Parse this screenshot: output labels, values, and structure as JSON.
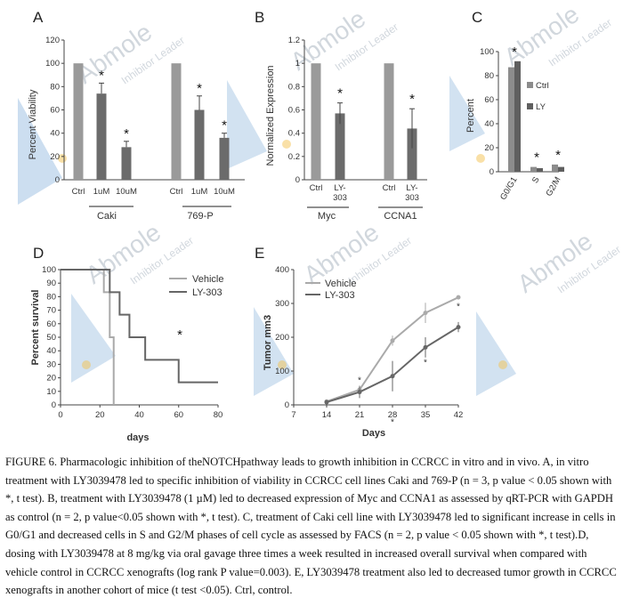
{
  "watermark": {
    "brand": "Abmole",
    "tagline": "Inhibitor Leader"
  },
  "panels": {
    "A": {
      "letter": "A",
      "ylabel": "Percent Viability",
      "yticks": [
        "0",
        "20",
        "40",
        "60",
        "80",
        "100",
        "120"
      ],
      "bar_labels": [
        "Ctrl",
        "1uM",
        "10uM",
        "Ctrl",
        "1uM",
        "10uM"
      ],
      "groups": [
        "Caki",
        "769-P"
      ],
      "star": "*"
    },
    "B": {
      "letter": "B",
      "ylabel": "Normalized Expression",
      "yticks": [
        "0",
        "0.2",
        "0.4",
        "0.6",
        "0.8",
        "1",
        "1.2"
      ],
      "bar_labels": [
        "Ctrl",
        "LY-\n303",
        "Ctrl",
        "LY-\n303"
      ],
      "groups": [
        "Myc",
        "CCNA1"
      ],
      "star": "*"
    },
    "C": {
      "letter": "C",
      "ylabel": "Percent",
      "yticks": [
        "0",
        "20",
        "40",
        "60",
        "80",
        "100"
      ],
      "categories": [
        "G0/G1",
        "S",
        "G2/M"
      ],
      "legend": [
        "Ctrl",
        "LY"
      ],
      "star": "*"
    },
    "D": {
      "letter": "D",
      "ylabel": "Percent survival",
      "xlabel": "days",
      "yticks": [
        "0",
        "10",
        "20",
        "30",
        "40",
        "50",
        "60",
        "70",
        "80",
        "90",
        "100"
      ],
      "xticks": [
        "0",
        "20",
        "40",
        "60",
        "80"
      ],
      "legend": [
        "Vehicle",
        "LY-303"
      ],
      "star": "*"
    },
    "E": {
      "letter": "E",
      "ylabel": "Tumor mm3",
      "xlabel": "Days",
      "yticks": [
        "0",
        "100",
        "200",
        "300",
        "400"
      ],
      "xticks": [
        "7",
        "14",
        "21",
        "28",
        "35",
        "42"
      ],
      "legend": [
        "Vehicle",
        "LY-303"
      ],
      "star": "*"
    }
  },
  "chart_data": [
    {
      "type": "bar",
      "panel": "A",
      "categories": [
        "Ctrl",
        "1uM",
        "10uM",
        "Ctrl",
        "1uM",
        "10uM"
      ],
      "groups": [
        "Caki",
        "Caki",
        "Caki",
        "769-P",
        "769-P",
        "769-P"
      ],
      "values": [
        100,
        74,
        28,
        100,
        60,
        36
      ],
      "errors": [
        0,
        9,
        5,
        0,
        12,
        4
      ],
      "significant": [
        false,
        true,
        true,
        false,
        true,
        true
      ],
      "ylabel": "Percent Viability",
      "ylim": [
        0,
        120
      ],
      "colors": [
        "#9a9a9a",
        "#6b6b6b",
        "#6b6b6b",
        "#9a9a9a",
        "#6b6b6b",
        "#6b6b6b"
      ]
    },
    {
      "type": "bar",
      "panel": "B",
      "categories": [
        "Ctrl",
        "LY-303",
        "Ctrl",
        "LY-303"
      ],
      "groups": [
        "Myc",
        "Myc",
        "CCNA1",
        "CCNA1"
      ],
      "values": [
        1.0,
        0.57,
        1.0,
        0.44
      ],
      "errors": [
        0,
        0.09,
        0,
        0.17
      ],
      "significant": [
        false,
        true,
        false,
        true
      ],
      "ylabel": "Normalized Expression",
      "ylim": [
        0,
        1.2
      ],
      "colors": [
        "#9a9a9a",
        "#6b6b6b",
        "#9a9a9a",
        "#6b6b6b"
      ]
    },
    {
      "type": "bar",
      "panel": "C",
      "categories": [
        "G0/G1",
        "S",
        "G2/M"
      ],
      "series": [
        {
          "name": "Ctrl",
          "values": [
            87,
            4,
            6
          ],
          "color": "#8c8c8c"
        },
        {
          "name": "LY",
          "values": [
            92,
            3,
            4
          ],
          "color": "#5f5f5f"
        }
      ],
      "significant": [
        true,
        true,
        true
      ],
      "ylabel": "Percent",
      "ylim": [
        0,
        100
      ]
    },
    {
      "type": "line",
      "panel": "D",
      "step": true,
      "series": [
        {
          "name": "Vehicle",
          "x": [
            0,
            22,
            22,
            25,
            25,
            27,
            27
          ],
          "y": [
            100,
            100,
            83.3,
            83.3,
            50,
            50,
            0
          ],
          "color": "#aaaaaa"
        },
        {
          "name": "LY-303",
          "x": [
            0,
            25,
            25,
            30,
            30,
            35,
            35,
            43,
            43,
            50,
            50,
            60,
            60,
            80
          ],
          "y": [
            100,
            100,
            83.3,
            83.3,
            66.7,
            66.7,
            50,
            50,
            33.3,
            33.3,
            33.3,
            33.3,
            16.7,
            16.7
          ],
          "color": "#666666"
        }
      ],
      "xlabel": "days",
      "ylabel": "Percent survival",
      "xlim": [
        0,
        80
      ],
      "ylim": [
        0,
        100
      ]
    },
    {
      "type": "line",
      "panel": "E",
      "series": [
        {
          "name": "Vehicle",
          "x": [
            14,
            21,
            28,
            35,
            42
          ],
          "y": [
            10,
            45,
            190,
            272,
            318
          ],
          "err": [
            3,
            12,
            15,
            30,
            4
          ],
          "color": "#aaaaaa"
        },
        {
          "name": "LY-303",
          "x": [
            14,
            21,
            28,
            35,
            42
          ],
          "y": [
            8,
            38,
            85,
            170,
            230
          ],
          "err": [
            3,
            18,
            45,
            30,
            15
          ],
          "color": "#666666"
        }
      ],
      "xlabel": "Days",
      "ylabel": "Tumor mm3",
      "xlim": [
        7,
        42
      ],
      "ylim": [
        0,
        400
      ]
    }
  ],
  "caption": "FIGURE 6. Pharmacologic inhibition of theNOTCHpathway leads to growth inhibition in CCRCC in vitro and in vivo. A, in vitro treatment with LY3039478 led to specific inhibition of viability in CCRCC cell lines Caki and 769-P (n = 3, p value < 0.05 shown with *, t test). B, treatment with LY3039478 (1 µM) led to decreased expression of Myc and CCNA1 as assessed by qRT-PCR with GAPDH as control (n = 2, p value<0.05 shown with *, t test). C, treatment of Caki cell line with LY3039478 led to significant increase in cells in G0/G1 and decreased cells in S and G2/M phases of cell cycle as assessed by FACS (n = 2, p value < 0.05 shown with *, t test).D, dosing with LY3039478 at 8 mg/kg via oral gavage three times a week resulted in increased overall survival when compared with vehicle control in CCRCC xenografts (log rank P value=0.003). E, LY3039478 treatment also led to decreased tumor growth in CCRCC xenografts in another cohort of mice (t test <0.05). Ctrl, control."
}
